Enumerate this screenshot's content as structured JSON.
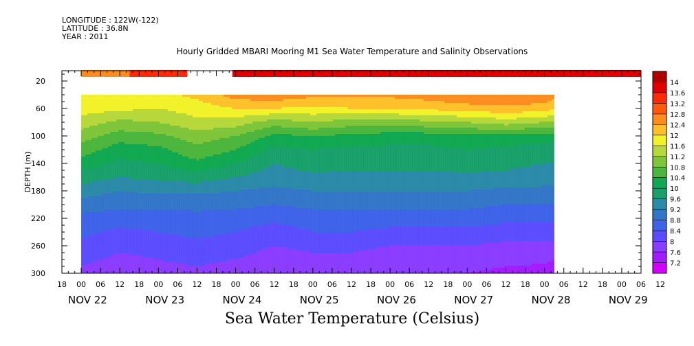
{
  "header": {
    "longitude": "LONGITUDE : 122W(-122)",
    "latitude": "LATITUDE : 36.8N",
    "year": "YEAR : 2011",
    "title": "Hourly Gridded MBARI Mooring M1 Sea Water Temperature and Salinity Observations"
  },
  "footer": {
    "variable_label": "Sea Water Temperature (Celsius)"
  },
  "chart_data": {
    "type": "heatmap",
    "title": "Hourly Gridded MBARI Mooring M1 Sea Water Temperature and Salinity Observations",
    "xlabel": "",
    "ylabel": "DEPTH (m)",
    "colorbar_label": "Sea Water Temperature (Celsius)",
    "x_range_hours_from_nov21_18": [
      0,
      180
    ],
    "y_range_depth_m": [
      5,
      300
    ],
    "y_ticks": [
      20,
      60,
      100,
      140,
      180,
      220,
      260,
      300
    ],
    "x_hour_tick_labels": [
      "18",
      "00",
      "06",
      "12",
      "18",
      "00",
      "06",
      "12",
      "18",
      "00",
      "06",
      "12",
      "18",
      "00",
      "06",
      "12",
      "18",
      "00",
      "06",
      "12",
      "18",
      "00",
      "06",
      "12",
      "18",
      "00",
      "06",
      "12",
      "18",
      "00",
      "06",
      "12"
    ],
    "x_day_labels": [
      "NOV 22",
      "NOV 23",
      "NOV 24",
      "NOV 25",
      "NOV 26",
      "NOV 27",
      "NOV 28",
      "NOV 29"
    ],
    "colorbar_levels": [
      7.2,
      7.6,
      8,
      8.4,
      8.8,
      9.2,
      9.6,
      10,
      10.4,
      10.8,
      11.2,
      11.6,
      12,
      12.4,
      12.8,
      13.2,
      13.6,
      14
    ],
    "colorbar_colors": [
      "#d400ff",
      "#a21cff",
      "#8a3cff",
      "#5b4dff",
      "#3f63e8",
      "#3376c8",
      "#2a8aa8",
      "#19a06a",
      "#10a850",
      "#4cb53c",
      "#7fc53a",
      "#b6d83a",
      "#f2f22a",
      "#ffc02a",
      "#ff8c1e",
      "#ff5a10",
      "#ff2a08",
      "#e00000",
      "#b00000"
    ],
    "surface_band": {
      "depth_m": 10,
      "segments": [
        {
          "start_hour": 6,
          "end_hour": 21,
          "temperature": 12.6
        },
        {
          "start_hour": 21,
          "end_hour": 39,
          "temperature": 13.4
        },
        {
          "start_hour": 53,
          "end_hour": 180,
          "temperature": 13.7
        }
      ]
    },
    "gridded_profile": {
      "start_hour": 6,
      "end_hour": 153,
      "top_depth_m": 40,
      "bottom_depth_m": 300,
      "depths_m": [
        40,
        60,
        80,
        100,
        120,
        140,
        160,
        180,
        200,
        220,
        240,
        260,
        280,
        300
      ],
      "hours": [
        6,
        18,
        30,
        42,
        54,
        66,
        78,
        90,
        102,
        114,
        126,
        138,
        150,
        153
      ],
      "temperature_matrix": [
        [
          11.9,
          11.9,
          11.9,
          12.1,
          12.6,
          12.7,
          12.5,
          12.5,
          12.5,
          12.6,
          12.8,
          12.8,
          12.7,
          12.6
        ],
        [
          11.8,
          11.7,
          11.6,
          11.8,
          12.0,
          12.0,
          11.9,
          12.0,
          12.0,
          12.1,
          12.2,
          12.3,
          12.2,
          12.0
        ],
        [
          11.4,
          11.1,
          11.2,
          11.5,
          11.4,
          11.0,
          11.2,
          11.0,
          11.0,
          11.1,
          11.2,
          11.4,
          11.2,
          11.2
        ],
        [
          11.0,
          10.6,
          10.7,
          11.0,
          10.8,
          10.3,
          10.4,
          10.3,
          10.2,
          10.2,
          10.3,
          10.3,
          10.2,
          10.2
        ],
        [
          10.6,
          10.2,
          10.3,
          10.7,
          10.4,
          9.9,
          10.0,
          9.9,
          9.9,
          9.9,
          10.0,
          9.9,
          9.8,
          9.8
        ],
        [
          10.2,
          9.9,
          10.0,
          10.3,
          10.0,
          9.6,
          9.8,
          9.7,
          9.7,
          9.7,
          9.8,
          9.7,
          9.6,
          9.6
        ],
        [
          9.8,
          9.6,
          9.7,
          9.8,
          9.6,
          9.4,
          9.5,
          9.5,
          9.5,
          9.5,
          9.5,
          9.5,
          9.4,
          9.4
        ],
        [
          9.4,
          9.2,
          9.3,
          9.3,
          9.2,
          9.1,
          9.2,
          9.2,
          9.2,
          9.2,
          9.2,
          9.1,
          9.1,
          9.1
        ],
        [
          9.0,
          8.9,
          8.9,
          8.9,
          8.9,
          8.8,
          8.9,
          8.9,
          8.9,
          8.9,
          8.9,
          8.8,
          8.8,
          8.8
        ],
        [
          8.7,
          8.6,
          8.6,
          8.7,
          8.6,
          8.5,
          8.6,
          8.6,
          8.6,
          8.6,
          8.6,
          8.5,
          8.5,
          8.5
        ],
        [
          8.5,
          8.3,
          8.4,
          8.5,
          8.4,
          8.2,
          8.4,
          8.4,
          8.3,
          8.3,
          8.3,
          8.2,
          8.2,
          8.2
        ],
        [
          8.3,
          8.1,
          8.2,
          8.3,
          8.2,
          8.0,
          8.1,
          8.1,
          8.0,
          8.0,
          8.0,
          7.9,
          7.9,
          7.9
        ],
        [
          8.1,
          7.9,
          8.0,
          8.1,
          8.0,
          7.8,
          7.9,
          7.9,
          7.8,
          7.8,
          7.8,
          7.7,
          7.7,
          7.6
        ],
        [
          7.9,
          7.7,
          7.8,
          7.9,
          7.7,
          7.6,
          7.7,
          7.7,
          7.6,
          7.6,
          7.6,
          7.5,
          7.4,
          7.3
        ]
      ]
    },
    "grid": false,
    "legend": "right colorbar"
  }
}
